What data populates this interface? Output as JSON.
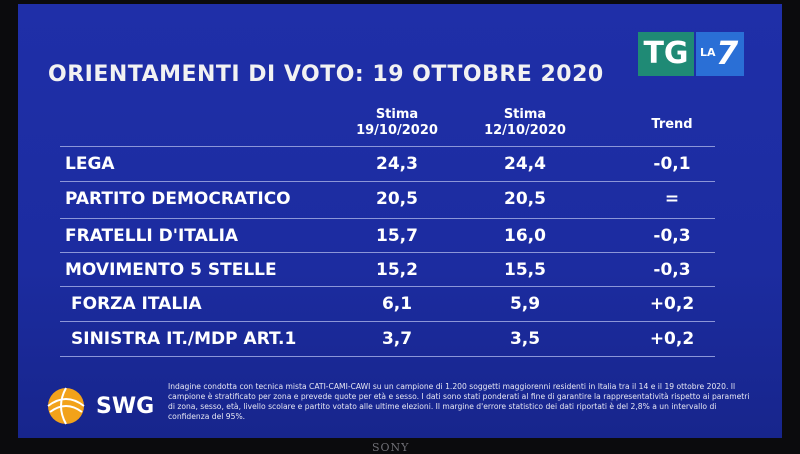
{
  "header": {
    "title": "ORIENTAMENTI DI VOTO: 19 OTTOBRE 2020",
    "logo": {
      "tg": "TG",
      "la": "LA",
      "seven": "7"
    }
  },
  "table": {
    "columns": [
      {
        "line1": "Stima",
        "line2": "19/10/2020"
      },
      {
        "line1": "Stima",
        "line2": "12/10/2020"
      },
      {
        "line1": "Trend"
      }
    ],
    "rows": [
      [
        "LEGA",
        "24,3",
        "24,4",
        "-0,1"
      ],
      [
        "PARTITO DEMOCRATICO",
        "20,5",
        "20,5",
        "="
      ],
      [
        "FRATELLI D'ITALIA",
        "15,7",
        "16,0",
        "-0,3"
      ],
      [
        "MOVIMENTO 5 STELLE",
        "15,2",
        "15,5",
        "-0,3"
      ],
      [
        "FORZA ITALIA",
        "6,1",
        "5,9",
        "+0,2"
      ],
      [
        "SINISTRA IT./MDP ART.1",
        "3,7",
        "3,5",
        "+0,2"
      ]
    ]
  },
  "footer": {
    "source": "SWG",
    "note": "Indagine condotta con tecnica mista CATI-CAMI-CAWI su un campione di 1.200 soggetti maggiorenni residenti in Italia tra il 14 e il 19 ottobre 2020. Il campione è stratificato per zona e prevede quote per età e sesso. I dati sono stati ponderati al fine di garantire la rappresentatività rispetto ai parametri di zona, sesso, età, livello scolare e partito votato alle ultime elezioni. Il margine d'errore statistico dei dati riportati è del 2,8% a un intervallo di confidenza del 95%.",
    "brand": "SONY"
  }
}
